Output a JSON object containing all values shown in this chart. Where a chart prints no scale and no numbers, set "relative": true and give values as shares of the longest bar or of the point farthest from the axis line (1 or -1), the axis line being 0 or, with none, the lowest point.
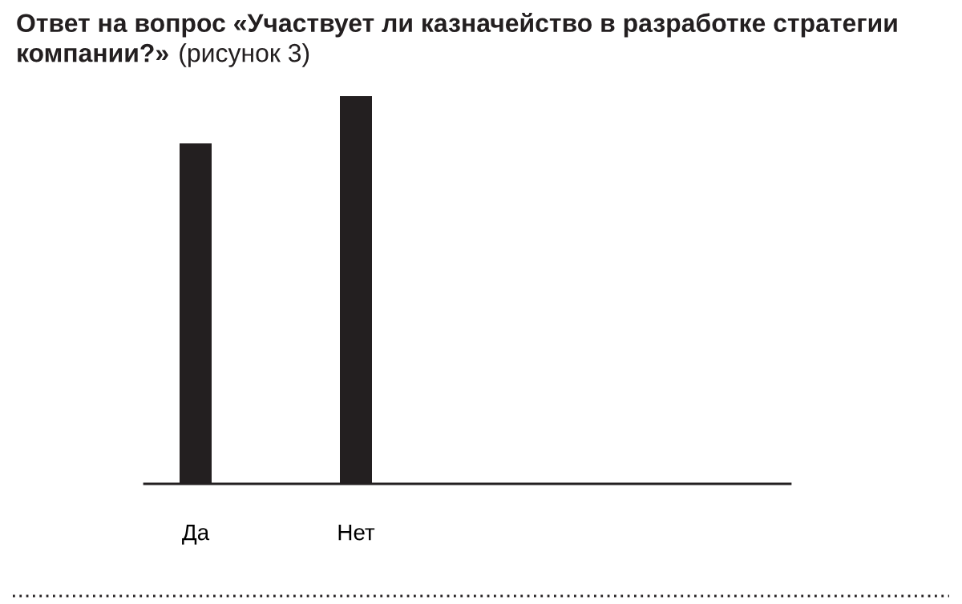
{
  "chart_data": {
    "type": "bar",
    "title": "Ответ на вопрос «Участвует ли казначейство в разработке стратегии компании?»",
    "subtitle": "(рисунок 3)",
    "categories": [
      "Да",
      "Нет"
    ],
    "values": [
      0.878,
      1
    ],
    "color": "#231f20",
    "relative": true
  }
}
